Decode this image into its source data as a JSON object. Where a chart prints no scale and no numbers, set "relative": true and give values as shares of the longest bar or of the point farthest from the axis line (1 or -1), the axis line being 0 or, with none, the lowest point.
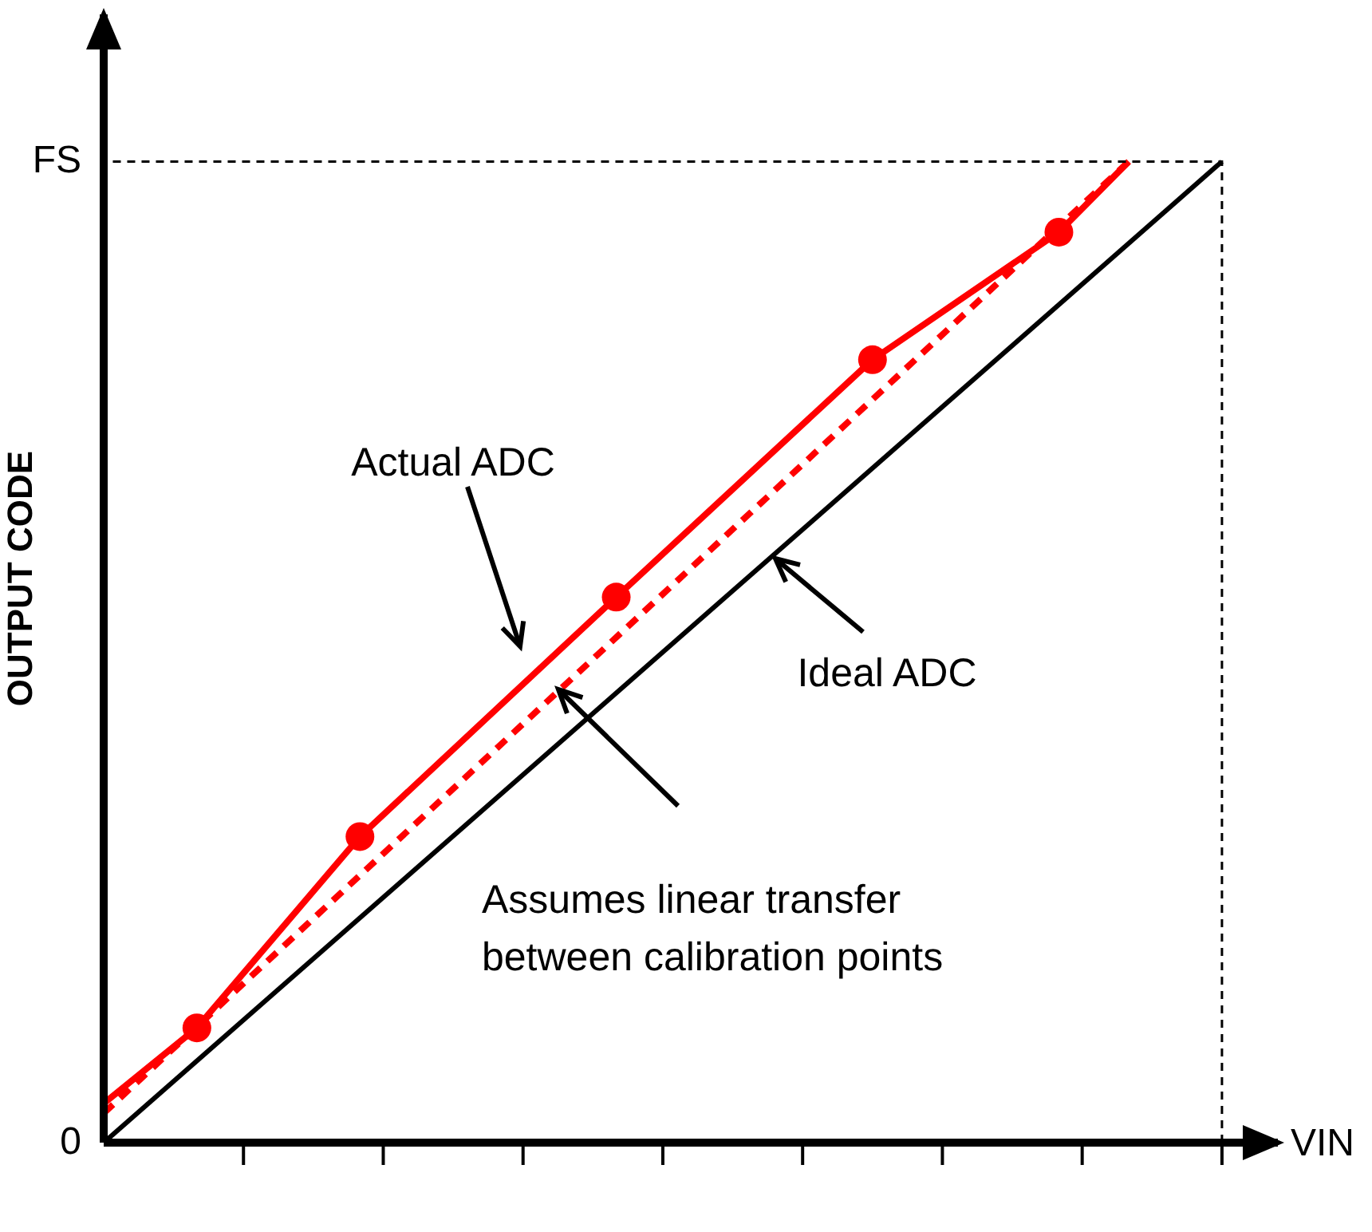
{
  "chart_data": {
    "type": "line",
    "xlabel": "VIN",
    "ylabel": "OUTPUT CODE",
    "relative": true,
    "categories": [
      null,
      null,
      null,
      null,
      null,
      null,
      null,
      null,
      null,
      null,
      null,
      null,
      null,
      null,
      null,
      null,
      null,
      null,
      null,
      null,
      null,
      null,
      null,
      null,
      null,
      null,
      null,
      null,
      null,
      null,
      null,
      null,
      null,
      null,
      null,
      null,
      null,
      null,
      null,
      null,
      null,
      null,
      null,
      null,
      null,
      null,
      null,
      null,
      null,
      null,
      null
    ],
    "series": [
      {
        "color": "#000000",
        "marker": "none",
        "line_style": "solid",
        "values": [
          0,
          null,
          null,
          null,
          null,
          null,
          null,
          null,
          null,
          null,
          null,
          null,
          null,
          null,
          null,
          null,
          null,
          null,
          null,
          null,
          null,
          null,
          null,
          null,
          null,
          null,
          null,
          null,
          null,
          null,
          null,
          null,
          null,
          null,
          null,
          null,
          null,
          null,
          null,
          null,
          null,
          null,
          null,
          null,
          null,
          null,
          null,
          null,
          1,
          null,
          null
        ]
      },
      {
        "color": "#ff0000",
        "marker": "none",
        "line_style": "dashed",
        "values": [
          0.03,
          null,
          null,
          null,
          null,
          null,
          null,
          null,
          null,
          null,
          null,
          null,
          null,
          null,
          null,
          null,
          null,
          null,
          null,
          null,
          null,
          null,
          null,
          null,
          null,
          null,
          null,
          null,
          null,
          null,
          null,
          null,
          null,
          null,
          null,
          null,
          null,
          null,
          null,
          null,
          null,
          null,
          null,
          null,
          1.0,
          null,
          null,
          null,
          null,
          null,
          null
        ]
      },
      {
        "color": "#ff0000",
        "marker": "circle",
        "line_style": "solid",
        "values": [
          0.04,
          null,
          null,
          null,
          0.117,
          null,
          null,
          null,
          null,
          null,
          null,
          0.312,
          null,
          null,
          null,
          null,
          null,
          null,
          null,
          null,
          null,
          null,
          0.556,
          null,
          null,
          null,
          null,
          null,
          null,
          null,
          null,
          null,
          null,
          0.798,
          null,
          null,
          null,
          null,
          null,
          null,
          null,
          0.928,
          null,
          null,
          1.0,
          null,
          null,
          null,
          null,
          null,
          null
        ]
      }
    ],
    "annotations": [
      "Actual ADC",
      "Ideal ADC",
      "Assumes linear transfer between calibration points",
      "0",
      "FS"
    ]
  }
}
